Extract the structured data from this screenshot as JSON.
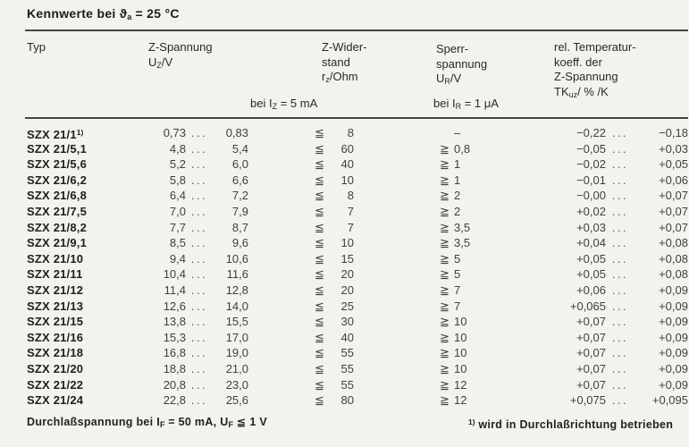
{
  "page": {
    "title": "Kennwerte bei ϑ~a~ = 25 °C"
  },
  "table": {
    "dots": "...",
    "header": {
      "typ": "Typ",
      "uz_line1": "Z-Spannung",
      "uz_line2": "U~Z~/V",
      "uz_condition": "bei I~Z~ = 5 mA",
      "rz_line1": "Z-Wider-",
      "rz_line2": "stand",
      "rz_line3": "r~z~/Ohm",
      "ur_line1": "Sperr-",
      "ur_line2": "spannung",
      "ur_line3": "U~R~/V",
      "ur_condition": "bei I~R~ = 1 μA",
      "tk_line1": "rel. Temperatur-",
      "tk_line2": "koeff. der",
      "tk_line3": "Z-Spannung",
      "tk_line4": "TK~uz~/ % /K"
    },
    "rows": [
      {
        "typ": "SZX 21/1^1)^",
        "uz_min": "0,73",
        "uz_max": "0,83",
        "rz_sign": "≦",
        "rz": "8",
        "ur_sign": "",
        "ur": "–",
        "tk_min": "−0,22",
        "tk_max": "−0,18"
      },
      {
        "typ": "SZX 21/5,1",
        "uz_min": "4,8",
        "uz_max": "5,4",
        "rz_sign": "≦",
        "rz": "60",
        "ur_sign": "≧",
        "ur": "0,8",
        "tk_min": "−0,05",
        "tk_max": "+0,03"
      },
      {
        "typ": "SZX 21/5,6",
        "uz_min": "5,2",
        "uz_max": "6,0",
        "rz_sign": "≦",
        "rz": "40",
        "ur_sign": "≧",
        "ur": "1",
        "tk_min": "−0,02",
        "tk_max": "+0,05"
      },
      {
        "typ": "SZX 21/6,2",
        "uz_min": "5,8",
        "uz_max": "6,6",
        "rz_sign": "≦",
        "rz": "10",
        "ur_sign": "≧",
        "ur": "1",
        "tk_min": "−0,01",
        "tk_max": "+0,06"
      },
      {
        "typ": "SZX 21/6,8",
        "uz_min": "6,4",
        "uz_max": "7,2",
        "rz_sign": "≦",
        "rz": "8",
        "ur_sign": "≧",
        "ur": "2",
        "tk_min": "−0,00",
        "tk_max": "+0,07"
      },
      {
        "typ": "SZX 21/7,5",
        "uz_min": "7,0",
        "uz_max": "7,9",
        "rz_sign": "≦",
        "rz": "7",
        "ur_sign": "≧",
        "ur": "2",
        "tk_min": "+0,02",
        "tk_max": "+0,07"
      },
      {
        "typ": "SZX 21/8,2",
        "uz_min": "7,7",
        "uz_max": "8,7",
        "rz_sign": "≦",
        "rz": "7",
        "ur_sign": "≧",
        "ur": "3,5",
        "tk_min": "+0,03",
        "tk_max": "+0,07"
      },
      {
        "typ": "SZX 21/9,1",
        "uz_min": "8,5",
        "uz_max": "9,6",
        "rz_sign": "≦",
        "rz": "10",
        "ur_sign": "≧",
        "ur": "3,5",
        "tk_min": "+0,04",
        "tk_max": "+0,08"
      },
      {
        "typ": "SZX 21/10",
        "uz_min": "9,4",
        "uz_max": "10,6",
        "rz_sign": "≦",
        "rz": "15",
        "ur_sign": "≧",
        "ur": "5",
        "tk_min": "+0,05",
        "tk_max": "+0,08"
      },
      {
        "typ": "SZX 21/11",
        "uz_min": "10,4",
        "uz_max": "11,6",
        "rz_sign": "≦",
        "rz": "20",
        "ur_sign": "≧",
        "ur": "5",
        "tk_min": "+0,05",
        "tk_max": "+0,08"
      },
      {
        "typ": "SZX 21/12",
        "uz_min": "11,4",
        "uz_max": "12,8",
        "rz_sign": "≦",
        "rz": "20",
        "ur_sign": "≧",
        "ur": "7",
        "tk_min": "+0,06",
        "tk_max": "+0,09"
      },
      {
        "typ": "SZX 21/13",
        "uz_min": "12,6",
        "uz_max": "14,0",
        "rz_sign": "≦",
        "rz": "25",
        "ur_sign": "≧",
        "ur": "7",
        "tk_min": "+0,065",
        "tk_max": "+0,09"
      },
      {
        "typ": "SZX 21/15",
        "uz_min": "13,8",
        "uz_max": "15,5",
        "rz_sign": "≦",
        "rz": "30",
        "ur_sign": "≧",
        "ur": "10",
        "tk_min": "+0,07",
        "tk_max": "+0,09"
      },
      {
        "typ": "SZX 21/16",
        "uz_min": "15,3",
        "uz_max": "17,0",
        "rz_sign": "≦",
        "rz": "40",
        "ur_sign": "≧",
        "ur": "10",
        "tk_min": "+0,07",
        "tk_max": "+0,09"
      },
      {
        "typ": "SZX 21/18",
        "uz_min": "16,8",
        "uz_max": "19,0",
        "rz_sign": "≦",
        "rz": "55",
        "ur_sign": "≧",
        "ur": "10",
        "tk_min": "+0,07",
        "tk_max": "+0,09"
      },
      {
        "typ": "SZX 21/20",
        "uz_min": "18,8",
        "uz_max": "21,0",
        "rz_sign": "≦",
        "rz": "55",
        "ur_sign": "≧",
        "ur": "10",
        "tk_min": "+0,07",
        "tk_max": "+0,09"
      },
      {
        "typ": "SZX 21/22",
        "uz_min": "20,8",
        "uz_max": "23,0",
        "rz_sign": "≦",
        "rz": "55",
        "ur_sign": "≧",
        "ur": "12",
        "tk_min": "+0,07",
        "tk_max": "+0,09"
      },
      {
        "typ": "SZX 21/24",
        "uz_min": "22,8",
        "uz_max": "25,6",
        "rz_sign": "≦",
        "rz": "80",
        "ur_sign": "≧",
        "ur": "12",
        "tk_min": "+0,075",
        "tk_max": "+0,095"
      }
    ]
  },
  "footer": {
    "forward_voltage_note": "Durchlaßspannung bei I~F~ = 50 mA, U~F~ ≦ 1 V",
    "footnote": "^1)^ wird in Durchlaßrichtung betrieben"
  }
}
